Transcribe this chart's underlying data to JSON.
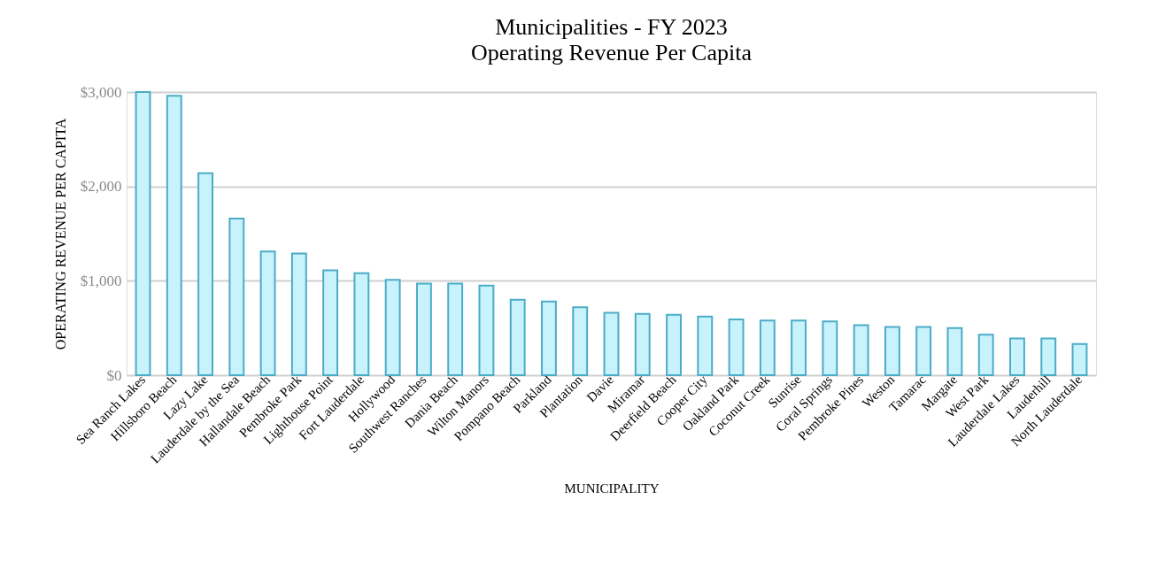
{
  "chart_data": {
    "type": "bar",
    "title": "Municipalities - FY 2023",
    "subtitle": "Operating Revenue Per Capita",
    "xlabel": "MUNICIPALITY",
    "ylabel": "OPERATING REVENUE PER CAPITA",
    "categories": [
      "Sea Ranch Lakes",
      "Hillsboro Beach",
      "Lazy Lake",
      "Lauderdale by the Sea",
      "Hallandale Beach",
      "Pembroke Park",
      "Lighthouse Point",
      "Fort Lauderdale",
      "Hollywood",
      "Southwest Ranches",
      "Dania Beach",
      "Wilton Manors",
      "Pompano Beach",
      "Parkland",
      "Plantation",
      "Davie",
      "Miramar",
      "Deerfield Beach",
      "Cooper City",
      "Oakland Park",
      "Coconut Creek",
      "Sunrise",
      "Coral Springs",
      "Pembroke Pines",
      "Weston",
      "Tamarac",
      "Margate",
      "West Park",
      "Lauderdale Lakes",
      "Lauderhill",
      "North Lauderdale"
    ],
    "values": [
      3000,
      2960,
      2140,
      1660,
      1310,
      1290,
      1110,
      1080,
      1010,
      970,
      970,
      950,
      800,
      780,
      720,
      660,
      650,
      640,
      620,
      590,
      580,
      580,
      570,
      530,
      510,
      510,
      500,
      430,
      390,
      390,
      330
    ],
    "color": "#c8f2fc",
    "ylim": [
      0,
      3000
    ],
    "yticks": [
      {
        "value": 0,
        "label": "$0"
      },
      {
        "value": 1000,
        "label": "$1,000"
      },
      {
        "value": 2000,
        "label": "$2,000"
      },
      {
        "value": 3000,
        "label": "$3,000"
      }
    ],
    "grid": "y"
  }
}
